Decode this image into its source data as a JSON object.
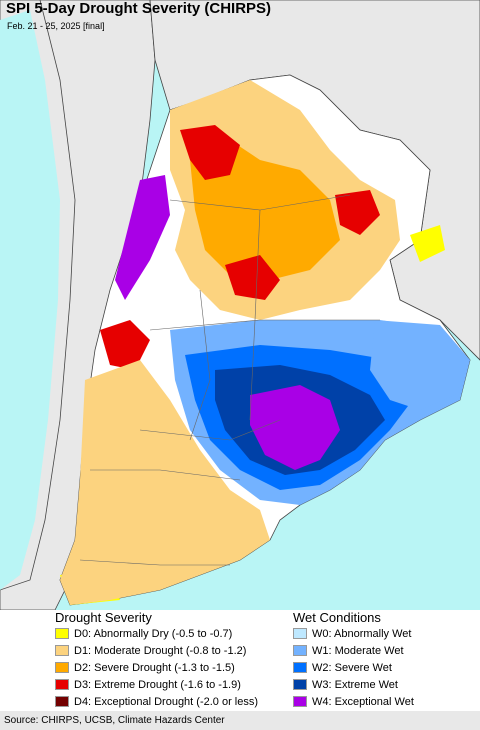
{
  "map": {
    "title": "SPI 5-Day Drought Severity (CHIRPS)",
    "subtitle": "Feb. 21 - 25, 2025 [final]",
    "colors": {
      "ocean": "#b9f5f5",
      "neighbor_land": "#e8e8e8",
      "no_anomaly": "#ffffff",
      "border": "#444444"
    }
  },
  "legend": {
    "drought": {
      "heading": "Drought Severity",
      "items": [
        {
          "label": "D0: Abnormally Dry (-0.5 to -0.7)",
          "color": "#ffff00"
        },
        {
          "label": "D1: Moderate Drought (-0.8 to -1.2)",
          "color": "#fcd37f"
        },
        {
          "label": "D2: Severe Drought (-1.3 to -1.5)",
          "color": "#ffaa00"
        },
        {
          "label": "D3: Extreme Drought (-1.6 to -1.9)",
          "color": "#e60000"
        },
        {
          "label": "D4: Exceptional Drought (-2.0 or less)",
          "color": "#730000"
        }
      ]
    },
    "wet": {
      "heading": "Wet Conditions",
      "items": [
        {
          "label": "W0: Abnormally Wet",
          "color": "#bee8ff"
        },
        {
          "label": "W1: Moderate Wet",
          "color": "#73b2ff"
        },
        {
          "label": "W2: Severe Wet",
          "color": "#0070ff"
        },
        {
          "label": "W3: Extreme Wet",
          "color": "#0041a8"
        },
        {
          "label": "W4: Exceptional Wet",
          "color": "#a900e6"
        }
      ]
    }
  },
  "footer": {
    "source": "Source: CHIRPS, UCSB, Climate Hazards Center"
  }
}
